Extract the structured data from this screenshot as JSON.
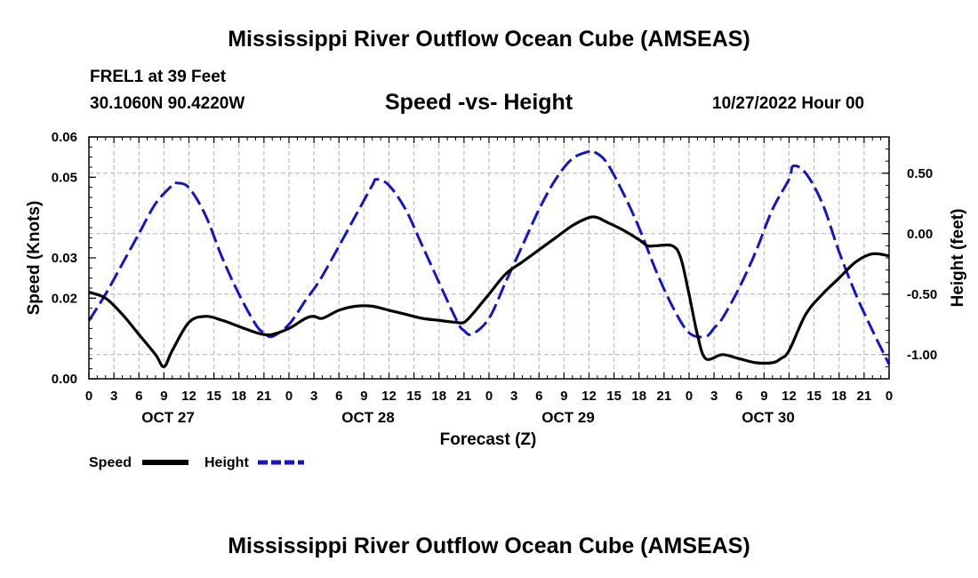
{
  "page": {
    "title": "Mississippi River Outflow Ocean Cube (AMSEAS)",
    "title_bottom": "Mississippi River Outflow Ocean Cube (AMSEAS)",
    "station_line": "FREL1 at 39 Feet",
    "coords_line": "30.1060N  90.4220W",
    "chart_subtitle": "Speed -vs- Height",
    "datetime": "10/27/2022 Hour 00"
  },
  "legend": {
    "speed_label": "Speed",
    "height_label": "Height"
  },
  "colors": {
    "speed": "#000000",
    "height": "#1414c8",
    "grid": "#b4b4b4"
  },
  "chart_data": {
    "type": "line",
    "title": "Speed -vs- Height",
    "xlabel": "Forecast (Z)",
    "ylabel": "Speed (Knots)",
    "y2label": "Height (feet)",
    "x_range": [
      0,
      96
    ],
    "ylim": [
      0,
      0.06
    ],
    "y2lim": [
      -1.2,
      0.8
    ],
    "x_ticks": [
      0,
      3,
      6,
      9,
      12,
      15,
      18,
      21,
      24,
      27,
      30,
      33,
      36,
      39,
      42,
      45,
      48,
      51,
      54,
      57,
      60,
      63,
      66,
      69,
      72,
      75,
      78,
      81,
      84,
      87,
      90,
      93,
      96
    ],
    "x_tick_labels": [
      "0",
      "3",
      "6",
      "9",
      "12",
      "15",
      "18",
      "21",
      "0",
      "3",
      "6",
      "9",
      "12",
      "15",
      "18",
      "21",
      "0",
      "3",
      "6",
      "9",
      "12",
      "15",
      "18",
      "21",
      "0",
      "3",
      "6",
      "9",
      "12",
      "15",
      "18",
      "21",
      "0"
    ],
    "y_ticks": [
      0,
      0.02,
      0.03,
      0.05,
      0.06
    ],
    "y_tick_labels": [
      "0.00",
      "0.02",
      "0.03",
      "0.05",
      "0.06"
    ],
    "y2_ticks": [
      0.5,
      0,
      -0.5,
      -1.0
    ],
    "y2_tick_labels": [
      "0.50",
      "0.00",
      "-0.50",
      "-1.00"
    ],
    "date_labels": [
      {
        "x": 9.5,
        "label": "OCT 27"
      },
      {
        "x": 33.5,
        "label": "OCT 28"
      },
      {
        "x": 57.5,
        "label": "OCT 29"
      },
      {
        "x": 81.5,
        "label": "OCT 30"
      }
    ],
    "series": [
      {
        "name": "Speed",
        "axis": "left",
        "style": "solid",
        "x": [
          0,
          2,
          4,
          6,
          8,
          9,
          10,
          12,
          14,
          16,
          18,
          20,
          21,
          22,
          24,
          26,
          27,
          28,
          30,
          32,
          34,
          36,
          38,
          40,
          42,
          44,
          45,
          46,
          48,
          50,
          52,
          54,
          56,
          58,
          60,
          61,
          62,
          64,
          66,
          67,
          68,
          70,
          71,
          72,
          73,
          74,
          76,
          78,
          80,
          82,
          83,
          84,
          86,
          88,
          90,
          92,
          94,
          96
        ],
        "y": [
          0.0215,
          0.02,
          0.016,
          0.011,
          0.006,
          0.003,
          0.007,
          0.014,
          0.0155,
          0.0145,
          0.013,
          0.0115,
          0.011,
          0.011,
          0.0125,
          0.015,
          0.0155,
          0.015,
          0.017,
          0.018,
          0.018,
          0.017,
          0.016,
          0.015,
          0.0145,
          0.014,
          0.014,
          0.016,
          0.021,
          0.026,
          0.029,
          0.032,
          0.035,
          0.038,
          0.04,
          0.04,
          0.039,
          0.037,
          0.0345,
          0.033,
          0.033,
          0.033,
          0.03,
          0.021,
          0.011,
          0.005,
          0.006,
          0.005,
          0.004,
          0.004,
          0.005,
          0.007,
          0.016,
          0.021,
          0.025,
          0.029,
          0.031,
          0.0305
        ]
      },
      {
        "name": "Height",
        "axis": "right",
        "style": "dashed",
        "x": [
          0,
          2,
          4,
          6,
          8,
          10,
          10.5,
          12,
          14,
          16,
          18,
          20,
          21,
          22,
          24,
          26,
          28,
          32,
          34,
          34.5,
          36,
          38,
          40,
          44,
          45,
          46,
          48,
          50,
          52,
          54,
          56,
          58,
          60,
          60.5,
          62,
          64,
          66,
          68,
          70,
          72,
          74,
          75,
          76,
          78,
          80,
          82,
          84,
          84.5,
          86,
          88,
          90,
          92,
          94,
          96
        ],
        "y": [
          -0.72,
          -0.5,
          -0.25,
          0.0,
          0.25,
          0.4,
          0.42,
          0.38,
          0.15,
          -0.2,
          -0.5,
          -0.75,
          -0.82,
          -0.85,
          -0.75,
          -0.55,
          -0.35,
          0.15,
          0.4,
          0.45,
          0.4,
          0.2,
          -0.1,
          -0.7,
          -0.8,
          -0.83,
          -0.7,
          -0.4,
          -0.1,
          0.2,
          0.45,
          0.62,
          0.68,
          0.68,
          0.6,
          0.35,
          0.05,
          -0.3,
          -0.6,
          -0.82,
          -0.85,
          -0.78,
          -0.7,
          -0.45,
          -0.15,
          0.2,
          0.45,
          0.56,
          0.5,
          0.25,
          -0.15,
          -0.5,
          -0.8,
          -1.08
        ]
      }
    ]
  }
}
